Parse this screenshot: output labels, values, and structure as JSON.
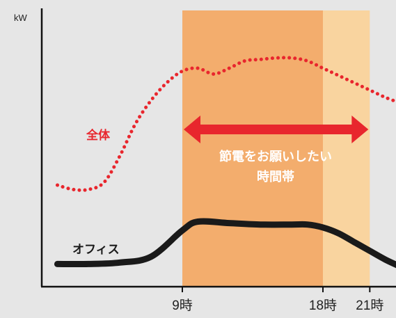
{
  "chart_data": {
    "type": "line",
    "ylabel": "kW",
    "x_ticks": [
      "9時",
      "18時",
      "21時"
    ],
    "shaded_periods": [
      {
        "from_hour": 9,
        "to_hour": 18,
        "color": "#f3ad6d"
      },
      {
        "from_hour": 18,
        "to_hour": 21,
        "color": "#f9d49f"
      }
    ],
    "series": [
      {
        "name": "全体",
        "style": "dotted",
        "color": "#e8262d",
        "x_hours": [
          1,
          2,
          3,
          4,
          5,
          6,
          7,
          8,
          9,
          10,
          11,
          12,
          13,
          14,
          15,
          16,
          17,
          18,
          19,
          20,
          21,
          22,
          23
        ],
        "y": [
          3.0,
          2.85,
          2.85,
          3.1,
          4.0,
          5.1,
          5.9,
          6.5,
          6.9,
          7.0,
          6.8,
          7.0,
          7.25,
          7.3,
          7.35,
          7.35,
          7.25,
          7.0,
          6.75,
          6.5,
          6.25,
          6.0,
          5.8
        ]
      },
      {
        "name": "オフィス",
        "style": "solid",
        "color": "#1a1a1a",
        "x_hours": [
          1,
          3,
          5,
          7,
          9,
          10,
          12,
          14,
          16,
          17,
          18,
          19,
          20,
          21,
          22,
          23
        ],
        "y": [
          0.3,
          0.3,
          0.35,
          0.55,
          1.45,
          1.75,
          1.7,
          1.65,
          1.65,
          1.65,
          1.55,
          1.35,
          1.05,
          0.75,
          0.45,
          0.2
        ]
      }
    ],
    "annotations": {
      "arrow_label_line1": "節電をお願いしたい",
      "arrow_label_line2": "時間帯"
    }
  },
  "colors": {
    "background": "#e6e6e6",
    "arrow": "#e8262d",
    "annotation_text": "#ffffff"
  }
}
